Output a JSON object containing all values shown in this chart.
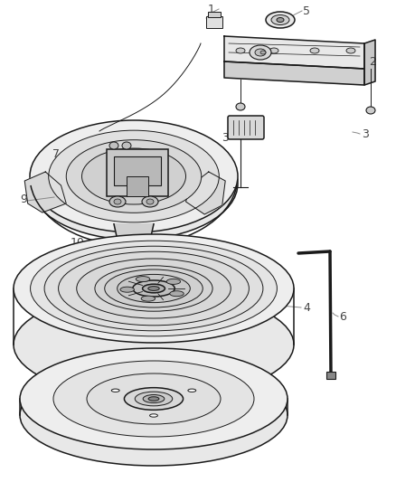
{
  "bg_color": "#ffffff",
  "line_color": "#1a1a1a",
  "label_color": "#555555",
  "fig_w": 4.38,
  "fig_h": 5.33,
  "dpi": 100
}
